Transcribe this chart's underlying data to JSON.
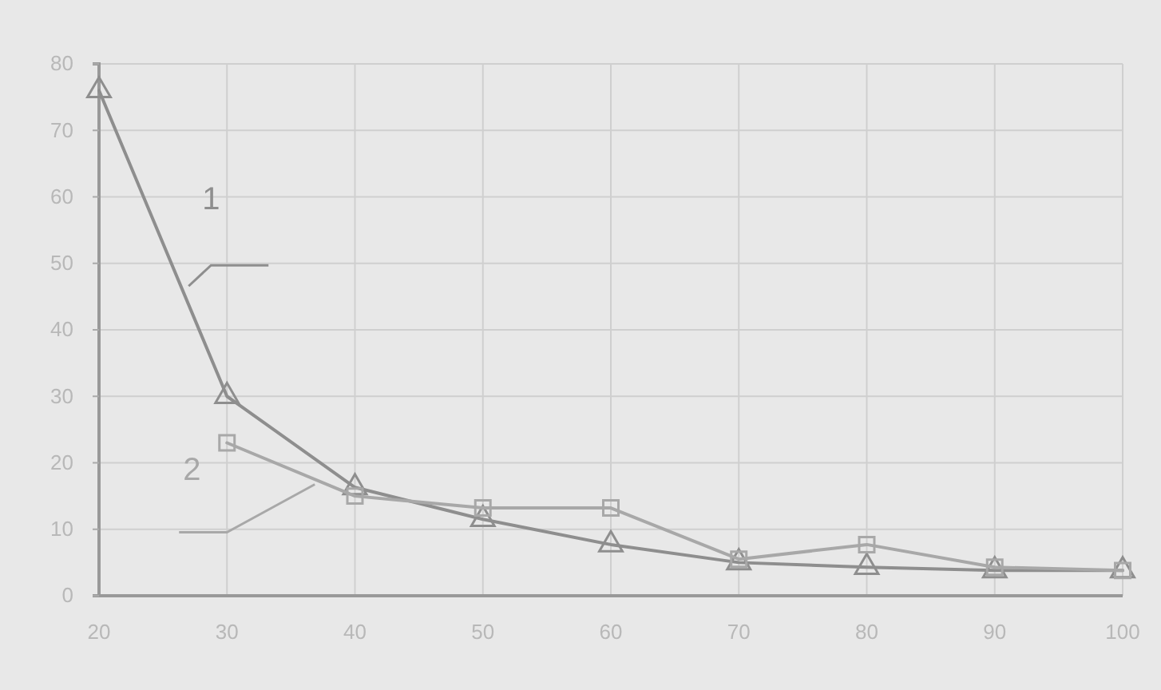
{
  "chart_data": {
    "type": "line",
    "x": [
      20,
      30,
      40,
      50,
      60,
      70,
      80,
      90,
      100
    ],
    "series": [
      {
        "name": "1",
        "color": "#8e8e8e",
        "marker": "triangle",
        "values": [
          76,
          30,
          16.3,
          11.5,
          7.7,
          5,
          4.3,
          3.8,
          3.8
        ]
      },
      {
        "name": "2",
        "color": "#a8a8a8",
        "marker": "square",
        "values": [
          null,
          23,
          15,
          13.2,
          13.2,
          5.5,
          7.7,
          4.3,
          3.8
        ]
      }
    ],
    "xlim": [
      20,
      100
    ],
    "xticks": [
      20,
      30,
      40,
      50,
      60,
      70,
      80,
      90,
      100
    ],
    "ylim": [
      0,
      80
    ],
    "yticks": [
      0,
      10,
      20,
      30,
      40,
      50,
      60,
      70,
      80
    ],
    "grid": true,
    "line_style": "solid"
  }
}
